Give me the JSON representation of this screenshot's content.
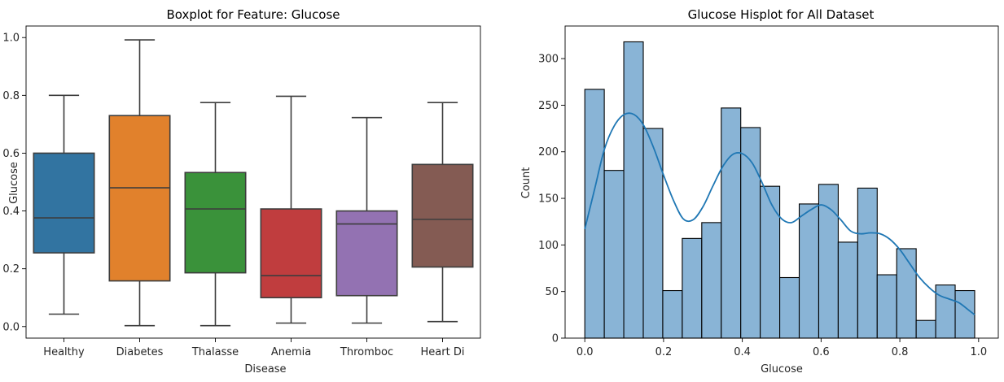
{
  "chart_data": [
    {
      "type": "box",
      "title": "Boxplot for Feature: Glucose",
      "xlabel": "Disease",
      "ylabel": "Glucose",
      "ylim": [
        -0.04,
        1.04
      ],
      "yticks": [
        "0.0",
        "0.2",
        "0.4",
        "0.6",
        "0.8",
        "1.0"
      ],
      "grid": false,
      "legend": "none",
      "categories": [
        "Healthy",
        "Diabetes",
        "Thalasse",
        "Anemia",
        "Thromboc",
        "Heart Di"
      ],
      "boxes": [
        {
          "category": "Healthy",
          "whisker_low": 0.043,
          "q1": 0.255,
          "median": 0.376,
          "q3": 0.6,
          "whisker_high": 0.8,
          "color": "#3274a1"
        },
        {
          "category": "Diabetes",
          "whisker_low": 0.003,
          "q1": 0.158,
          "median": 0.48,
          "q3": 0.73,
          "whisker_high": 0.992,
          "color": "#e1812c"
        },
        {
          "category": "Thalasse",
          "whisker_low": 0.003,
          "q1": 0.186,
          "median": 0.407,
          "q3": 0.533,
          "whisker_high": 0.775,
          "color": "#3a923a"
        },
        {
          "category": "Anemia",
          "whisker_low": 0.012,
          "q1": 0.1,
          "median": 0.176,
          "q3": 0.407,
          "whisker_high": 0.797,
          "color": "#c03d3e"
        },
        {
          "category": "Thromboc",
          "whisker_low": 0.012,
          "q1": 0.107,
          "median": 0.355,
          "q3": 0.4,
          "whisker_high": 0.723,
          "color": "#9372b2"
        },
        {
          "category": "Heart Di",
          "whisker_low": 0.017,
          "q1": 0.206,
          "median": 0.371,
          "q3": 0.561,
          "whisker_high": 0.775,
          "color": "#845b53"
        }
      ]
    },
    {
      "type": "histogram",
      "title": "Glucose Hisplot for All Dataset",
      "xlabel": "Glucose",
      "ylabel": "Count",
      "xlim": [
        -0.05,
        1.05
      ],
      "ylim": [
        0,
        335
      ],
      "xticks": [
        "0.0",
        "0.2",
        "0.4",
        "0.6",
        "0.8",
        "1.0"
      ],
      "yticks": [
        "0",
        "50",
        "100",
        "150",
        "200",
        "250",
        "300"
      ],
      "grid": false,
      "legend": "none",
      "bin_start": 0.0,
      "bin_width": 0.0495,
      "counts": [
        267,
        180,
        318,
        225,
        51,
        107,
        124,
        247,
        226,
        163,
        65,
        144,
        165,
        103,
        161,
        68,
        96,
        19,
        57,
        51
      ],
      "bar_color": "#89b4d6",
      "kde_color": "#1f77b4",
      "kde": {
        "x": [
          0.0,
          0.025,
          0.05,
          0.075,
          0.1,
          0.125,
          0.15,
          0.175,
          0.2,
          0.225,
          0.25,
          0.275,
          0.3,
          0.325,
          0.35,
          0.375,
          0.4,
          0.425,
          0.45,
          0.475,
          0.5,
          0.525,
          0.55,
          0.575,
          0.6,
          0.625,
          0.65,
          0.675,
          0.7,
          0.725,
          0.75,
          0.775,
          0.8,
          0.825,
          0.85,
          0.875,
          0.9,
          0.925,
          0.95,
          0.975,
          0.99
        ],
        "y": [
          117,
          160,
          203,
          228,
          240,
          240,
          228,
          204,
          175,
          148,
          128,
          127,
          141,
          163,
          184,
          197,
          198,
          188,
          167,
          143,
          128,
          124,
          131,
          138,
          143,
          138,
          127,
          115,
          112,
          113,
          112,
          106,
          95,
          80,
          65,
          54,
          46,
          42,
          38,
          30,
          25
        ]
      }
    }
  ]
}
